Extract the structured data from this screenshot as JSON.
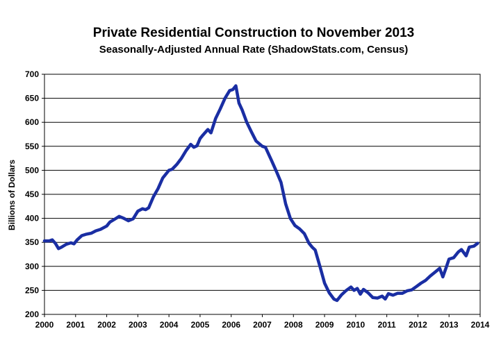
{
  "chart_data": {
    "type": "line",
    "title": "Private Residential Construction to November 2013",
    "subtitle": "Seasonally-Adjusted Annual Rate (ShadowStats.com, Census)",
    "xlabel": "",
    "ylabel": "Billions of Dollars",
    "xlim": [
      2000,
      2014
    ],
    "ylim": [
      200,
      700
    ],
    "x_ticks": [
      "2000",
      "2001",
      "2002",
      "2003",
      "2004",
      "2005",
      "2006",
      "2007",
      "2008",
      "2009",
      "2010",
      "2011",
      "2012",
      "2013",
      "2014"
    ],
    "y_ticks": [
      "200",
      "250",
      "300",
      "350",
      "400",
      "450",
      "500",
      "550",
      "600",
      "650",
      "700"
    ],
    "grid": "horizontal",
    "line_color": "#1a2ea3",
    "series": [
      {
        "x": [
          2000.0,
          2000.15,
          2000.25,
          2000.35,
          2000.45,
          2000.55,
          2000.7,
          2000.85,
          2000.95,
          2001.05,
          2001.2,
          2001.35,
          2001.5,
          2001.65,
          2001.8,
          2002.0,
          2002.1,
          2002.25,
          2002.4,
          2002.55,
          2002.7,
          2002.85,
          2003.0,
          2003.15,
          2003.25,
          2003.35,
          2003.5,
          2003.65,
          2003.8,
          2004.0,
          2004.1,
          2004.25,
          2004.4,
          2004.55,
          2004.7,
          2004.8,
          2004.9,
          2005.0,
          2005.1,
          2005.25,
          2005.35,
          2005.5,
          2005.65,
          2005.8,
          2005.95,
          2006.05,
          2006.15,
          2006.25,
          2006.35,
          2006.5,
          2006.65,
          2006.8,
          2007.0,
          2007.1,
          2007.3,
          2007.45,
          2007.6,
          2007.75,
          2007.9,
          2008.05,
          2008.2,
          2008.35,
          2008.5,
          2008.6,
          2008.7,
          2008.85,
          2009.0,
          2009.15,
          2009.3,
          2009.4,
          2009.55,
          2009.7,
          2009.85,
          2009.95,
          2010.05,
          2010.15,
          2010.25,
          2010.4,
          2010.55,
          2010.7,
          2010.85,
          2010.95,
          2011.05,
          2011.2,
          2011.35,
          2011.5,
          2011.65,
          2011.8,
          2011.95,
          2012.1,
          2012.25,
          2012.4,
          2012.55,
          2012.7,
          2012.8,
          2012.9,
          2013.0,
          2013.15,
          2013.3,
          2013.4,
          2013.55,
          2013.65,
          2013.8,
          2013.92
        ],
        "y": [
          353,
          353,
          355,
          348,
          337,
          340,
          346,
          349,
          347,
          355,
          364,
          367,
          369,
          374,
          377,
          384,
          392,
          398,
          404,
          400,
          395,
          399,
          415,
          420,
          418,
          422,
          445,
          462,
          484,
          500,
          502,
          512,
          525,
          541,
          554,
          548,
          551,
          566,
          574,
          585,
          578,
          608,
          628,
          650,
          666,
          668,
          676,
          640,
          626,
          600,
          580,
          561,
          550,
          548,
          520,
          498,
          475,
          430,
          400,
          385,
          378,
          368,
          348,
          340,
          334,
          300,
          265,
          245,
          232,
          229,
          241,
          250,
          257,
          250,
          254,
          242,
          252,
          245,
          235,
          234,
          238,
          232,
          243,
          240,
          244,
          244,
          249,
          251,
          258,
          265,
          271,
          280,
          288,
          296,
          278,
          296,
          315,
          318,
          330,
          335,
          322,
          340,
          342,
          348
        ]
      }
    ]
  }
}
